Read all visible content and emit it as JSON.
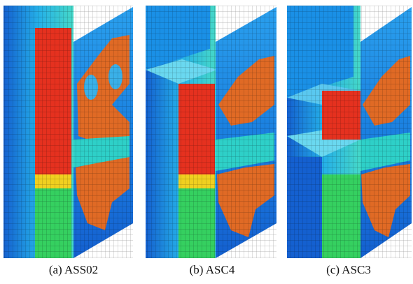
{
  "captions": [
    "(a) ASS02",
    "(b) ASC4",
    "(c) ASC3"
  ]
}
